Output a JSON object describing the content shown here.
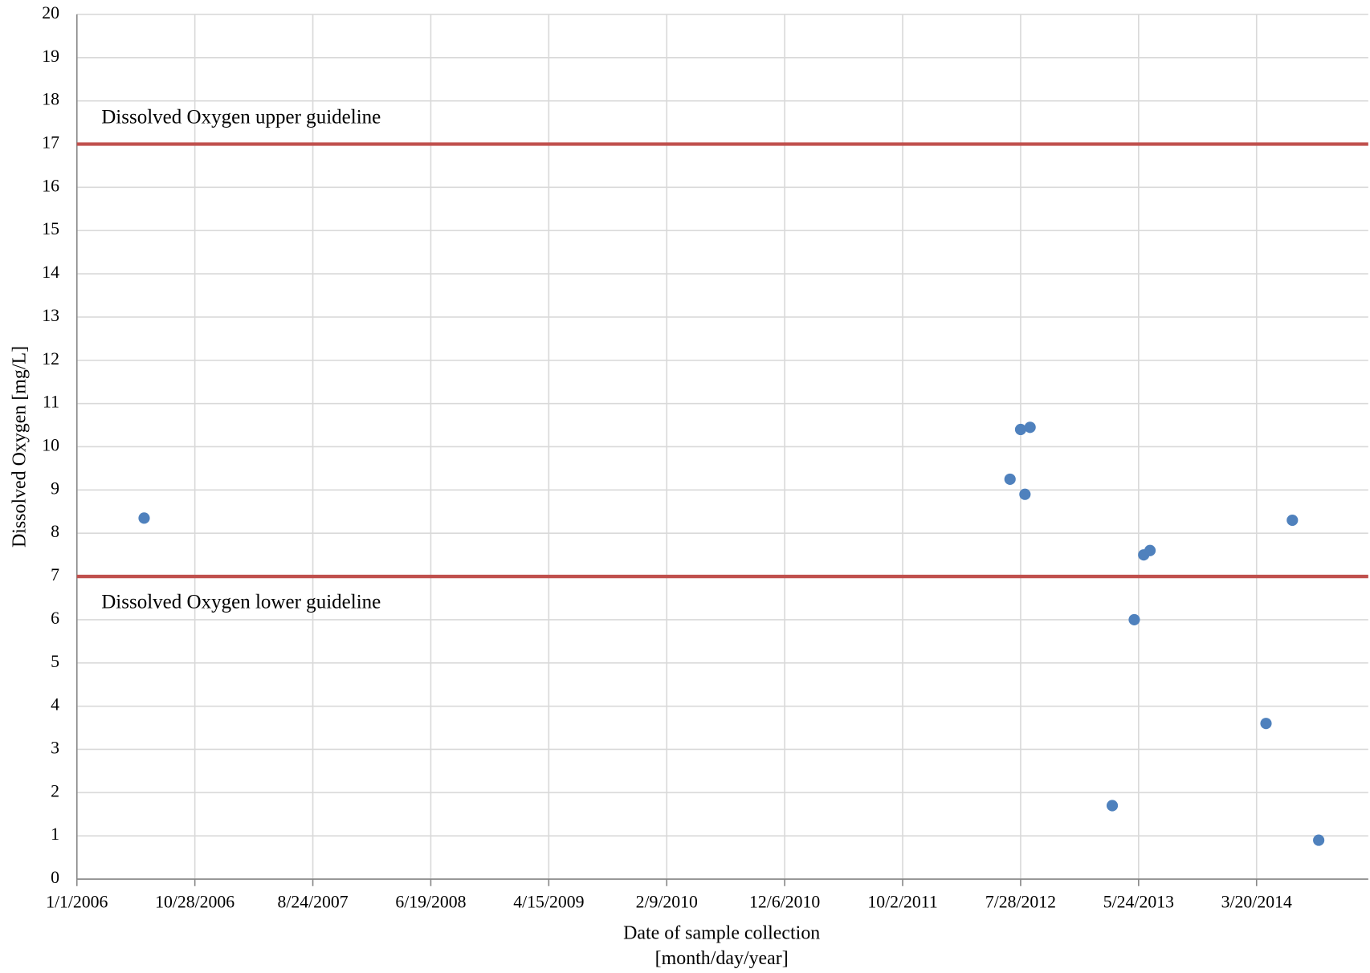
{
  "chart_data": {
    "type": "scatter",
    "xlabel": "Date of sample collection\n[month/day/year]",
    "ylabel": "Dissolved Oxygen [mg/L]",
    "series": [
      {
        "name": "Dissolved Oxygen",
        "color": "#4f81bd",
        "x": [
          "2006-06-21",
          "2012-07-01",
          "2012-07-28",
          "2012-08-08",
          "2012-08-21",
          "2013-03-18",
          "2013-05-13",
          "2013-06-06",
          "2013-06-22",
          "2014-04-13",
          "2014-06-19",
          "2014-08-25"
        ],
        "values": [
          8.35,
          9.25,
          10.4,
          8.9,
          10.45,
          1.7,
          6.0,
          7.5,
          7.6,
          3.6,
          8.3,
          0.9
        ]
      }
    ],
    "guidelines": [
      {
        "label": "Dissolved Oxygen upper guideline",
        "value": 17,
        "color": "#c0504d"
      },
      {
        "label": "Dissolved Oxygen lower guideline",
        "value": 7,
        "color": "#c0504d"
      }
    ],
    "xlim": [
      "2006-01-01",
      "2014-12-29"
    ],
    "xticks": [
      {
        "value": "2006-01-01",
        "label": "1/1/2006"
      },
      {
        "value": "2006-10-28",
        "label": "10/28/2006"
      },
      {
        "value": "2007-08-24",
        "label": "8/24/2007"
      },
      {
        "value": "2008-06-19",
        "label": "6/19/2008"
      },
      {
        "value": "2009-04-15",
        "label": "4/15/2009"
      },
      {
        "value": "2010-02-09",
        "label": "2/9/2010"
      },
      {
        "value": "2010-12-06",
        "label": "12/6/2010"
      },
      {
        "value": "2011-10-02",
        "label": "10/2/2011"
      },
      {
        "value": "2012-07-28",
        "label": "7/28/2012"
      },
      {
        "value": "2013-05-24",
        "label": "5/24/2013"
      },
      {
        "value": "2014-03-20",
        "label": "3/20/2014"
      }
    ],
    "ylim": [
      0,
      20
    ],
    "yticks": [
      0,
      1,
      2,
      3,
      4,
      5,
      6,
      7,
      8,
      9,
      10,
      11,
      12,
      13,
      14,
      15,
      16,
      17,
      18,
      19,
      20
    ],
    "grid": true
  }
}
